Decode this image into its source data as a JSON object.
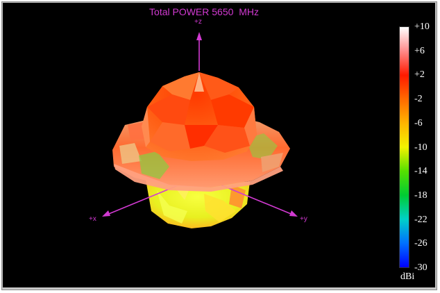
{
  "window": {
    "title": "Total POWER 5650  MHz"
  },
  "axes": {
    "z_label": "+z",
    "x_label": "+x",
    "y_label": "+y",
    "axis_color": "#d23ad2"
  },
  "colorbar": {
    "unit": "dBi",
    "ticks": [
      "+10",
      "+6",
      "+2",
      "-2",
      "-6",
      "-10",
      "-14",
      "-18",
      "-22",
      "-26",
      "-30"
    ],
    "gradient_colors": [
      "#ffffff",
      "#ff8a8a",
      "#ff1a00",
      "#ff6a00",
      "#ffb400",
      "#f2f200",
      "#55e000",
      "#00cc33",
      "#00d0c8",
      "#0070ff",
      "#0000ff"
    ]
  }
}
